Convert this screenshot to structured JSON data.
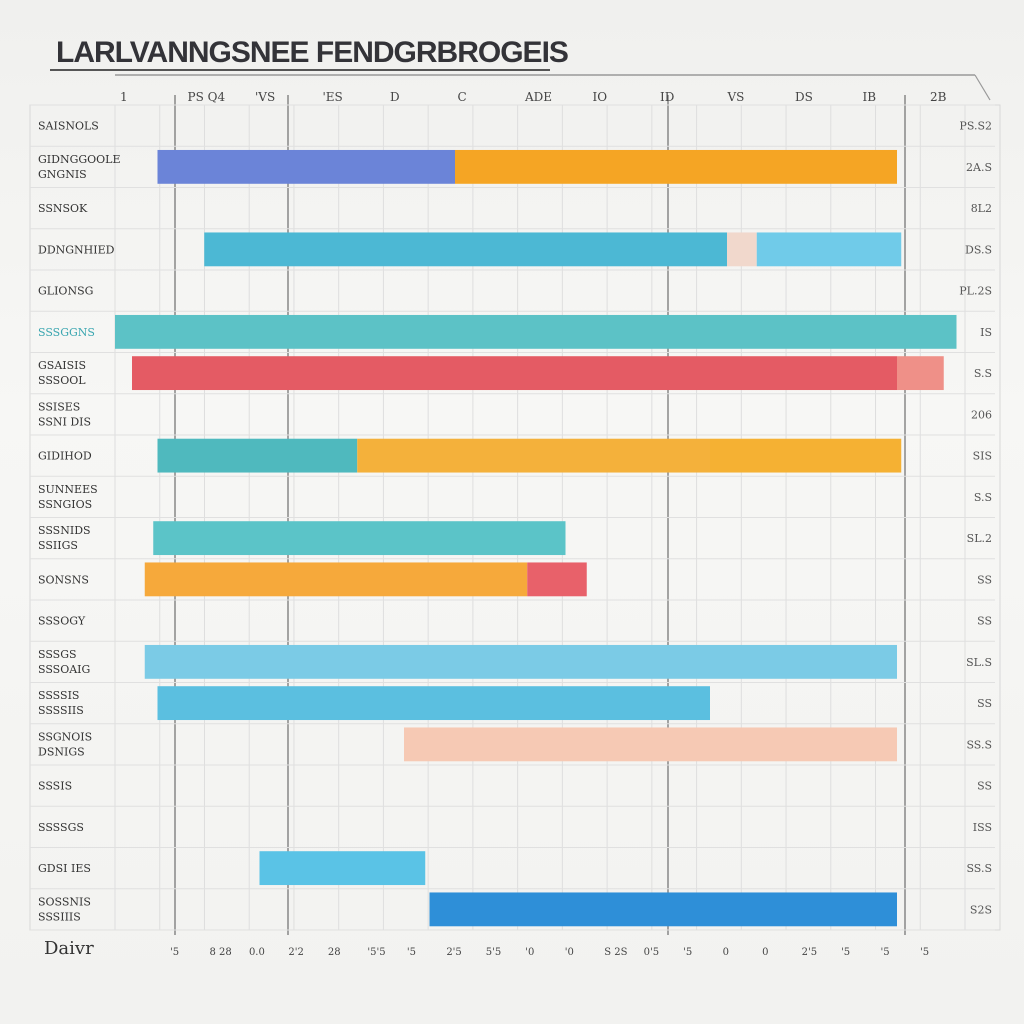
{
  "chart_data": {
    "type": "bar",
    "title": "LARLVANNGSNEE FENDGRBROGEIS",
    "xlabel": "Daivr",
    "grid": true,
    "legend": "none",
    "x_range": [
      0,
      20
    ],
    "top_ticks": [
      "1",
      "PS Q4",
      "'VS",
      "'ES",
      "D",
      "C",
      "ADE",
      "IO",
      "ID",
      "VS",
      "DS",
      "IB",
      "2B"
    ],
    "bottom_ticks": [
      "'5",
      "8 28",
      "0.0",
      "2'2",
      "28",
      "'5'5",
      "'5",
      "2'5",
      "5'5",
      "'0",
      "'0",
      "S 2S",
      "0'5",
      "'5",
      "0",
      "0",
      "2'5",
      "'5",
      "'5",
      "'5"
    ],
    "rows": [
      {
        "label": "SAISNOLS",
        "sublabel": "",
        "value_label": "PS.S2",
        "segments": []
      },
      {
        "label": "GIDNGGOOLE",
        "sublabel": "GNGNIS",
        "value_label": "2A.S",
        "segments": [
          {
            "start": 1.0,
            "end": 8.0,
            "color": "#6b84d8"
          },
          {
            "start": 8.0,
            "end": 18.4,
            "color": "#f5a524"
          }
        ]
      },
      {
        "label": "SSNSOK",
        "sublabel": "",
        "value_label": "8L2",
        "segments": []
      },
      {
        "label": "DDNGNHIED",
        "sublabel": "",
        "value_label": "DS.S",
        "segments": [
          {
            "start": 2.1,
            "end": 14.4,
            "color": "#4cb8d4"
          },
          {
            "start": 14.4,
            "end": 15.1,
            "color": "#f1d8cc"
          },
          {
            "start": 15.1,
            "end": 18.5,
            "color": "#70cbe9"
          }
        ]
      },
      {
        "label": "GLIONSG",
        "sublabel": "",
        "value_label": "PL.2S",
        "segments": []
      },
      {
        "label": "SSSGGNS",
        "sublabel": "",
        "value_label": "IS",
        "segments": [
          {
            "start": 0.0,
            "end": 19.8,
            "color": "#5cc2c6"
          }
        ]
      },
      {
        "label": "GSAISIS",
        "sublabel": "SSSOOL",
        "value_label": "S.S",
        "segments": [
          {
            "start": 0.4,
            "end": 18.4,
            "color": "#e45b64"
          },
          {
            "start": 18.4,
            "end": 19.5,
            "color": "#ef9088"
          }
        ]
      },
      {
        "label": "SSISES",
        "sublabel": "SSNI DIS",
        "value_label": "206",
        "segments": []
      },
      {
        "label": "GIDIHOD",
        "sublabel": "",
        "value_label": "SIS",
        "segments": [
          {
            "start": 1.0,
            "end": 5.7,
            "color": "#4fb9be"
          },
          {
            "start": 5.7,
            "end": 14.0,
            "color": "#f4b13b"
          },
          {
            "start": 14.0,
            "end": 18.5,
            "color": "#f5b133"
          }
        ]
      },
      {
        "label": "SUNNEES",
        "sublabel": "SSNGIOS",
        "value_label": "S.S",
        "segments": []
      },
      {
        "label": "SSSNIDS",
        "sublabel": "SSIIGS",
        "value_label": "SL.2",
        "segments": [
          {
            "start": 0.9,
            "end": 10.6,
            "color": "#5bc4c8"
          }
        ]
      },
      {
        "label": "SONSNS",
        "sublabel": "",
        "value_label": "SS",
        "segments": [
          {
            "start": 0.7,
            "end": 9.7,
            "color": "#f6a93b"
          },
          {
            "start": 9.7,
            "end": 11.1,
            "color": "#e8616a"
          }
        ]
      },
      {
        "label": "SSSOGY",
        "sublabel": "",
        "value_label": "SS",
        "segments": []
      },
      {
        "label": "SSSGS",
        "sublabel": "SSSOAIG",
        "value_label": "SL.S",
        "segments": [
          {
            "start": 0.7,
            "end": 18.4,
            "color": "#7bcbe6"
          }
        ]
      },
      {
        "label": "SSSSIS",
        "sublabel": "SSSSIIS",
        "value_label": "SS",
        "segments": [
          {
            "start": 1.0,
            "end": 14.0,
            "color": "#5bbfe0"
          }
        ]
      },
      {
        "label": "SSGNOIS",
        "sublabel": "DSNIGS",
        "value_label": "SS.S",
        "segments": [
          {
            "start": 6.8,
            "end": 18.4,
            "color": "#f6c9b4"
          }
        ]
      },
      {
        "label": "SSSIS",
        "sublabel": "",
        "value_label": "SS",
        "segments": []
      },
      {
        "label": "SSSSGS",
        "sublabel": "",
        "value_label": "ISS",
        "segments": []
      },
      {
        "label": "GDSI IES",
        "sublabel": "",
        "value_label": "SS.S",
        "segments": [
          {
            "start": 3.4,
            "end": 7.3,
            "color": "#5ac3e6"
          }
        ]
      },
      {
        "label": "SOSSNIS",
        "sublabel": "SSSIIIS",
        "value_label": "S2S",
        "segments": [
          {
            "start": 7.4,
            "end": 18.4,
            "color": "#2e8fd8"
          }
        ]
      }
    ]
  }
}
